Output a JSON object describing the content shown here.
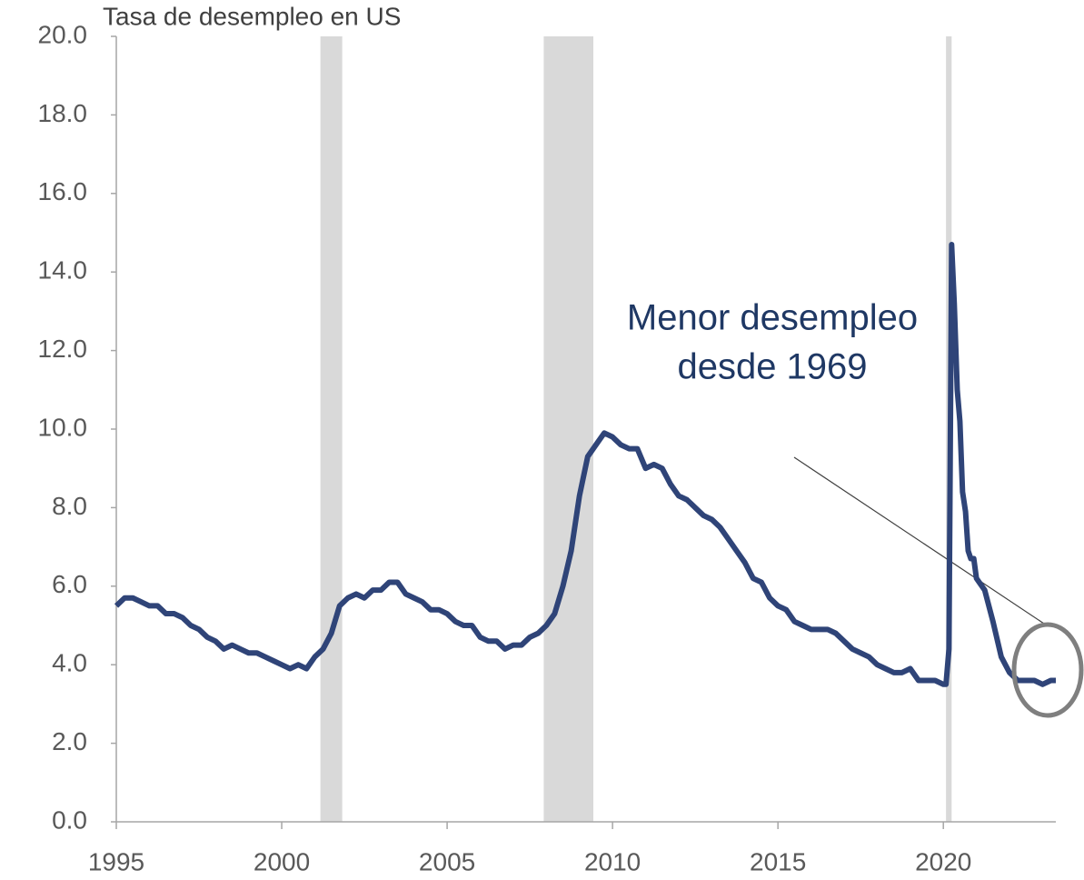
{
  "chart_data": {
    "type": "line",
    "title": "Tasa de desempleo en US",
    "annotation": [
      "Menor desempleo",
      "desde 1969"
    ],
    "color": "#2f4478",
    "shade_color": "#d9d9d9",
    "shaded_regions": [
      [
        2001.17,
        2001.83
      ],
      [
        2007.92,
        2009.42
      ],
      [
        2020.08,
        2020.25
      ]
    ],
    "xlim": [
      1995,
      2023.4
    ],
    "xticks": [
      1995,
      2000,
      2005,
      2010,
      2015,
      2020
    ],
    "ylim": [
      0,
      20
    ],
    "yticks": [
      {
        "value": 0,
        "label": "0.0"
      },
      {
        "value": 2,
        "label": "2.0"
      },
      {
        "value": 4,
        "label": "4.0"
      },
      {
        "value": 6,
        "label": "6.0"
      },
      {
        "value": 8,
        "label": "8.0"
      },
      {
        "value": 10,
        "label": "10.0"
      },
      {
        "value": 12,
        "label": "12.0"
      },
      {
        "value": 14,
        "label": "14.0"
      },
      {
        "value": 16,
        "label": "16.0"
      },
      {
        "value": 18,
        "label": "18.0"
      },
      {
        "value": 20,
        "label": "20.0"
      }
    ],
    "grid": false,
    "x": [
      1995,
      1995.25,
      1995.5,
      1995.75,
      1996,
      1996.25,
      1996.5,
      1996.75,
      1997,
      1997.25,
      1997.5,
      1997.75,
      1998,
      1998.25,
      1998.5,
      1998.75,
      1999,
      1999.25,
      1999.5,
      1999.75,
      2000,
      2000.25,
      2000.5,
      2000.75,
      2001,
      2001.25,
      2001.5,
      2001.75,
      2002,
      2002.25,
      2002.5,
      2002.75,
      2003,
      2003.25,
      2003.5,
      2003.75,
      2004,
      2004.25,
      2004.5,
      2004.75,
      2005,
      2005.25,
      2005.5,
      2005.75,
      2006,
      2006.25,
      2006.5,
      2006.75,
      2007,
      2007.25,
      2007.5,
      2007.75,
      2008,
      2008.25,
      2008.5,
      2008.75,
      2009,
      2009.25,
      2009.5,
      2009.75,
      2010,
      2010.25,
      2010.5,
      2010.75,
      2011,
      2011.25,
      2011.5,
      2011.75,
      2012,
      2012.25,
      2012.5,
      2012.75,
      2013,
      2013.25,
      2013.5,
      2013.75,
      2014,
      2014.25,
      2014.5,
      2014.75,
      2015,
      2015.25,
      2015.5,
      2015.75,
      2016,
      2016.25,
      2016.5,
      2016.75,
      2017,
      2017.25,
      2017.5,
      2017.75,
      2018,
      2018.25,
      2018.5,
      2018.75,
      2019,
      2019.25,
      2019.5,
      2019.75,
      2020,
      2020.08,
      2020.17,
      2020.25,
      2020.33,
      2020.42,
      2020.5,
      2020.58,
      2020.67,
      2020.75,
      2020.83,
      2020.92,
      2021,
      2021.25,
      2021.5,
      2021.75,
      2022,
      2022.25,
      2022.5,
      2022.75,
      2023,
      2023.25,
      2023.4
    ],
    "values": [
      5.5,
      5.7,
      5.7,
      5.6,
      5.5,
      5.5,
      5.3,
      5.3,
      5.2,
      5.0,
      4.9,
      4.7,
      4.6,
      4.4,
      4.5,
      4.4,
      4.3,
      4.3,
      4.2,
      4.1,
      4.0,
      3.9,
      4.0,
      3.9,
      4.2,
      4.4,
      4.8,
      5.5,
      5.7,
      5.8,
      5.7,
      5.9,
      5.9,
      6.1,
      6.1,
      5.8,
      5.7,
      5.6,
      5.4,
      5.4,
      5.3,
      5.1,
      5.0,
      5.0,
      4.7,
      4.6,
      4.6,
      4.4,
      4.5,
      4.5,
      4.7,
      4.8,
      5.0,
      5.3,
      6.0,
      6.9,
      8.3,
      9.3,
      9.6,
      9.9,
      9.8,
      9.6,
      9.5,
      9.5,
      9.0,
      9.1,
      9.0,
      8.6,
      8.3,
      8.2,
      8.0,
      7.8,
      7.7,
      7.5,
      7.2,
      6.9,
      6.6,
      6.2,
      6.1,
      5.7,
      5.5,
      5.4,
      5.1,
      5.0,
      4.9,
      4.9,
      4.9,
      4.8,
      4.6,
      4.4,
      4.3,
      4.2,
      4.0,
      3.9,
      3.8,
      3.8,
      3.9,
      3.6,
      3.6,
      3.6,
      3.5,
      3.5,
      4.4,
      14.7,
      13.2,
      11.0,
      10.2,
      8.4,
      7.9,
      6.9,
      6.7,
      6.7,
      6.2,
      5.9,
      5.1,
      4.2,
      3.8,
      3.6,
      3.6,
      3.6,
      3.5,
      3.6,
      3.6
    ]
  }
}
